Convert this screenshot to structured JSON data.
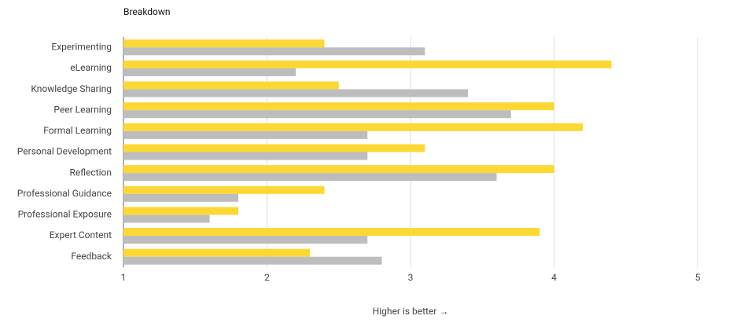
{
  "chart_data": {
    "type": "hbar",
    "title": "Breakdown",
    "x_label": "Higher is better →",
    "categories": [
      "Experimenting",
      "eLearning",
      "Knowledge Sharing",
      "Peer Learning",
      "Formal Learning",
      "Personal Development",
      "Reflection",
      "Professional Guidance",
      "Professional Exposure",
      "Expert Content",
      "Feedback"
    ],
    "series": [
      {
        "color": "#fdd835",
        "values": [
          2.4,
          4.4,
          2.5,
          4.0,
          4.2,
          3.1,
          4.0,
          2.4,
          1.8,
          3.9,
          2.3
        ]
      },
      {
        "color": "#bdbdbd",
        "values": [
          3.1,
          2.2,
          3.4,
          3.7,
          2.7,
          2.7,
          3.6,
          1.8,
          1.6,
          2.7,
          2.8
        ]
      }
    ],
    "xlim": [
      1,
      5
    ],
    "xticks": [
      1,
      2,
      3,
      4,
      5
    ],
    "grid": true
  }
}
